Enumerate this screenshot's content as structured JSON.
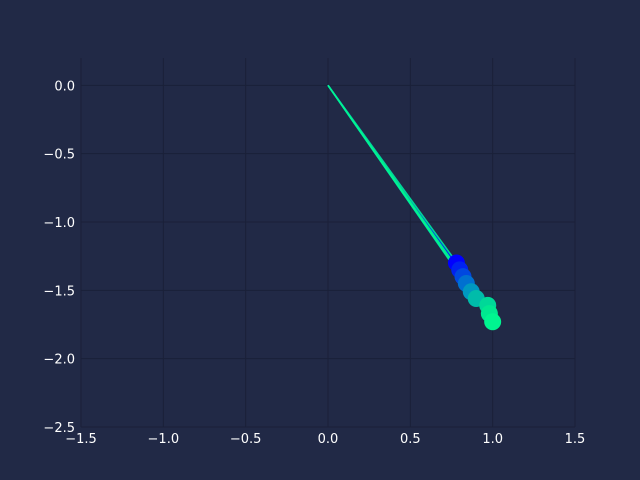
{
  "chart_data": {
    "type": "line",
    "title": "",
    "xlabel": "",
    "ylabel": "",
    "xlim": [
      -1.5,
      1.5
    ],
    "ylim": [
      -2.5,
      0.2
    ],
    "grid": true,
    "legend": "none",
    "x_ticks": [
      -1.5,
      -1.0,
      -0.5,
      0.0,
      0.5,
      1.0,
      1.5
    ],
    "x_tick_labels": [
      "−1.5",
      "−1.0",
      "−0.5",
      "0.0",
      "0.5",
      "1.0",
      "1.5"
    ],
    "y_ticks": [
      0.0,
      -0.5,
      -1.0,
      -1.5,
      -2.0,
      -2.5
    ],
    "y_tick_labels": [
      "0.0",
      "−0.5",
      "−1.0",
      "−1.5",
      "−2.0",
      "−2.5"
    ],
    "series": [
      {
        "x": [
          0.0,
          0.78,
          0.8,
          0.82,
          0.84,
          0.87,
          0.9,
          0.97,
          0.98,
          1.0
        ],
        "y": [
          0.0,
          -1.3,
          -1.35,
          -1.4,
          -1.45,
          -1.51,
          -1.56,
          -1.61,
          -1.67,
          -1.73
        ],
        "colors": [
          "#0000ff",
          "#0000ff",
          "#0022f0",
          "#0048e0",
          "#0070d0",
          "#0098c0",
          "#00bcaa",
          "#00d898",
          "#00e890",
          "#00f590"
        ]
      }
    ]
  }
}
